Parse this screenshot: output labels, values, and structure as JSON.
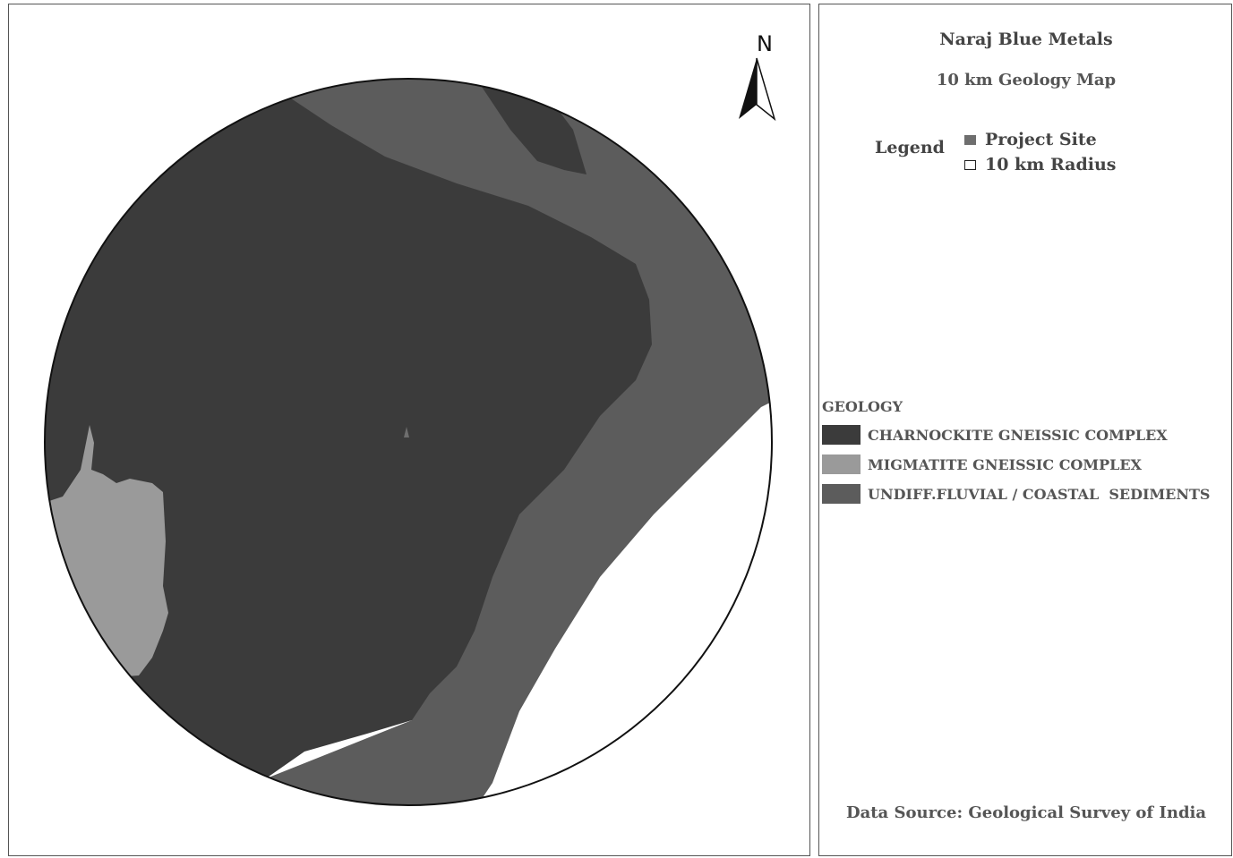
{
  "map": {
    "north_label": "N",
    "colors": {
      "charnockite": "#3b3b3b",
      "migmatite": "#9a9a9a",
      "sediments": "#5c5c5c",
      "outside": "#ffffff",
      "radius_outline": "#111111"
    }
  },
  "legend": {
    "title": "Naraj Blue Metals",
    "subtitle": "10 km Geology Map",
    "legend_label": "Legend",
    "items": [
      {
        "label": "Project Site",
        "color": "#6e6e6e"
      },
      {
        "label": "10 km Radius",
        "color": "#ffffff"
      }
    ]
  },
  "geology": {
    "heading": "GEOLOGY",
    "classes": [
      {
        "label": "CHARNOCKITE GNEISSIC COMPLEX",
        "color": "#3b3b3b"
      },
      {
        "label": "MIGMATITE GNEISSIC COMPLEX",
        "color": "#9a9a9a"
      },
      {
        "label": "UNDIFF.FLUVIAL / COASTAL  SEDIMENTS",
        "color": "#5c5c5c"
      }
    ]
  },
  "data_source": "Data Source: Geological Survey of India"
}
